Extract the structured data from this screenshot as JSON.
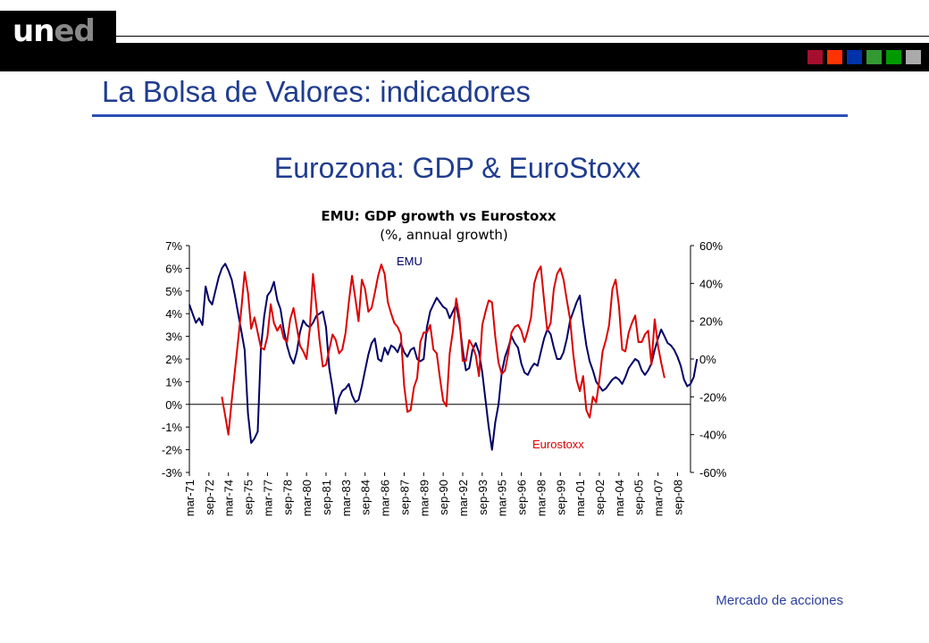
{
  "header": {
    "logo_u": "un",
    "logo_ed": "ed",
    "color_squares": [
      "#a50f2d",
      "#ff3300",
      "#0033aa",
      "#339933",
      "#009900",
      "#aaaaaa"
    ]
  },
  "slide": {
    "title": "La Bolsa de Valores: indicadores",
    "subtitle": "Eurozona: GDP & EuroStoxx",
    "footer": "Mercado de acciones"
  },
  "chart_data": {
    "type": "line",
    "title": "EMU: GDP growth vs Eurostoxx",
    "subtitle": "(%, annual growth)",
    "x_ticks": [
      "mar-71",
      "sep-72",
      "mar-74",
      "sep-75",
      "mar-77",
      "sep-78",
      "mar-80",
      "sep-81",
      "mar-83",
      "sep-84",
      "mar-86",
      "sep-87",
      "mar-89",
      "sep-90",
      "mar-92",
      "sep-93",
      "mar-95",
      "sep-96",
      "mar-98",
      "sep-99",
      "mar-01",
      "sep-02",
      "mar-04",
      "sep-05",
      "mar-07",
      "sep-08"
    ],
    "y_left": {
      "ticks": [
        "7%",
        "6%",
        "5%",
        "4%",
        "3%",
        "2%",
        "1%",
        "0%",
        "-1%",
        "-2%",
        "-3%"
      ],
      "ylim": [
        -3,
        7
      ]
    },
    "y_right": {
      "ticks": [
        "60%",
        "40%",
        "20%",
        "0%",
        "-20%",
        "-40%",
        "-60%"
      ],
      "ylim": [
        -60,
        60
      ]
    },
    "grid": false,
    "series": [
      {
        "name": "EMU",
        "axis": "left",
        "color": "#000066",
        "x_start": 1971.0,
        "x_step": 0.25,
        "values": [
          4.4,
          4.0,
          3.6,
          3.8,
          3.5,
          5.2,
          4.6,
          4.4,
          5.0,
          5.6,
          6.0,
          6.2,
          5.9,
          5.5,
          4.8,
          4.0,
          3.2,
          2.4,
          -0.4,
          -1.7,
          -1.5,
          -1.2,
          2.5,
          3.9,
          4.8,
          5.0,
          5.4,
          4.6,
          4.2,
          3.3,
          2.6,
          2.1,
          1.8,
          2.3,
          3.2,
          3.7,
          3.5,
          3.4,
          3.6,
          3.9,
          4.0,
          4.1,
          3.4,
          1.6,
          0.7,
          -0.4,
          0.3,
          0.6,
          0.7,
          0.9,
          0.4,
          0.1,
          0.2,
          0.8,
          1.5,
          2.2,
          2.7,
          2.9,
          2.0,
          1.9,
          2.5,
          2.2,
          2.6,
          2.5,
          2.3,
          2.7,
          2.3,
          2.1,
          2.4,
          2.5,
          2.0,
          1.9,
          2.0,
          3.4,
          4.1,
          4.4,
          4.7,
          4.5,
          4.3,
          4.2,
          3.8,
          4.1,
          4.4,
          3.6,
          2.4,
          1.5,
          1.6,
          2.4,
          2.7,
          2.3,
          1.4,
          0.2,
          -1.0,
          -2.0,
          -0.8,
          0.0,
          1.4,
          2.1,
          2.5,
          3.0,
          2.7,
          2.5,
          1.8,
          1.4,
          1.3,
          1.6,
          1.8,
          1.7,
          2.3,
          2.9,
          3.3,
          3.1,
          2.5,
          2.0,
          2.0,
          2.3,
          2.9,
          3.7,
          4.1,
          4.5,
          4.8,
          3.6,
          2.6,
          1.9,
          1.5,
          1.0,
          0.8,
          0.6,
          0.7,
          0.9,
          1.1,
          1.2,
          1.1,
          0.9,
          1.2,
          1.6,
          1.8,
          2.0,
          1.9,
          1.5,
          1.3,
          1.5,
          1.8,
          2.4,
          2.9,
          3.3,
          3.0,
          2.7,
          2.6,
          2.4,
          2.1,
          1.7,
          1.1,
          0.8,
          0.9,
          1.2,
          2.0
        ]
      },
      {
        "name": "Eurostoxx",
        "axis": "right",
        "color": "#dd0000",
        "x_start": 1973.5,
        "x_step": 0.25,
        "values": [
          -20,
          -30,
          -40,
          -22,
          -6,
          10,
          27,
          46,
          35,
          16,
          22,
          14,
          6,
          5,
          12,
          29,
          19,
          15,
          18,
          11,
          9,
          21,
          27,
          17,
          7,
          4,
          0,
          16,
          45,
          28,
          10,
          -4,
          -3,
          5,
          13,
          10,
          3,
          5,
          14,
          30,
          44,
          32,
          20,
          42,
          37,
          25,
          27,
          35,
          44,
          50,
          45,
          30,
          24,
          19,
          17,
          13,
          -14,
          -28,
          -27,
          -15,
          -10,
          9,
          14,
          14,
          18,
          5,
          3,
          -10,
          -22,
          -25,
          3,
          15,
          32,
          22,
          -1,
          -1,
          10,
          7,
          2,
          -9,
          18,
          25,
          31,
          30,
          12,
          -2,
          -8,
          -6,
          3,
          14,
          17,
          18,
          15,
          9,
          15,
          22,
          40,
          46,
          49,
          31,
          15,
          19,
          37,
          45,
          48,
          42,
          31,
          21,
          2,
          -11,
          -17,
          -9,
          -27,
          -31,
          -20,
          -23,
          -11,
          4,
          10,
          18,
          37,
          42,
          28,
          5,
          4,
          14,
          19,
          23,
          9,
          9,
          13,
          15,
          -3,
          21,
          7,
          -2,
          -10
        ]
      }
    ],
    "annotations": [
      "EMU",
      "Eurostoxx"
    ]
  }
}
